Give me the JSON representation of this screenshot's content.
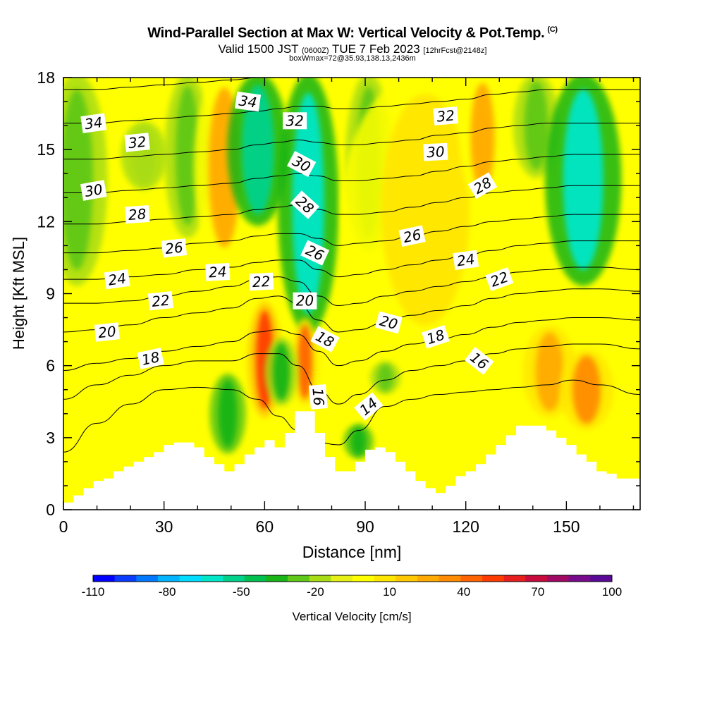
{
  "chart_data": {
    "type": "heatmap",
    "title": "Wind-Parallel Section at Max W: Vertical Velocity & Pot.Temp.",
    "title_mark": "(C)",
    "subtitle_prefix": "Valid 1500 JST",
    "subtitle_utc": "(0600Z)",
    "subtitle_date": "TUE 7 Feb 2023",
    "subtitle_fcst": "[12hrFcst@2148z]",
    "box_note": "boxWmax=72@35.93,138.13,2436m",
    "xlabel": "Distance [nm]",
    "ylabel": "Height [Kft MSL]",
    "xlim": [
      0,
      172
    ],
    "ylim": [
      0,
      18
    ],
    "x_ticks": [
      "0",
      "30",
      "60",
      "90",
      "120",
      "150"
    ],
    "y_ticks": [
      "0",
      "3",
      "6",
      "9",
      "12",
      "15",
      "18"
    ],
    "colorbar": {
      "label": "Vertical Velocity [cm/s]",
      "tick_labels": [
        "-110",
        "-80",
        "-50",
        "-20",
        "10",
        "40",
        "70",
        "100"
      ],
      "colors": [
        "#0000ff",
        "#0a3cff",
        "#0078ff",
        "#00b4ff",
        "#00dcff",
        "#00e6c8",
        "#00d28c",
        "#00c050",
        "#18b418",
        "#60c818",
        "#a8dc14",
        "#e6f014",
        "#ffff00",
        "#ffe600",
        "#ffc800",
        "#ffaa00",
        "#ff8c00",
        "#ff6400",
        "#ff3c00",
        "#e61e1e",
        "#c80a3c",
        "#a00a64",
        "#780a8c",
        "#5a0a96"
      ]
    },
    "velocity_bands": [
      {
        "x": 4,
        "w": 4,
        "b": 9.5,
        "t": 18,
        "v": -12
      },
      {
        "x": 24,
        "w": 3,
        "b": 13.5,
        "t": 16,
        "v": -5
      },
      {
        "x": 37,
        "w": 3,
        "b": 11.5,
        "t": 18,
        "v": -18
      },
      {
        "x": 48,
        "w": 4,
        "b": 10.5,
        "t": 18,
        "v": 42
      },
      {
        "x": 58,
        "w": 4,
        "b": 12,
        "t": 18,
        "v": -48
      },
      {
        "x": 73,
        "w": 4,
        "b": 7.5,
        "t": 18,
        "v": -55
      },
      {
        "x": 91,
        "w": 3,
        "b": 11,
        "t": 18,
        "v": -20
      },
      {
        "x": 108,
        "w": 11,
        "b": 7,
        "t": 18,
        "v": 28
      },
      {
        "x": 125,
        "w": 3,
        "b": 13,
        "t": 18,
        "v": 42
      },
      {
        "x": 141,
        "w": 3,
        "b": 14,
        "t": 18,
        "v": -18
      },
      {
        "x": 155,
        "w": 5,
        "b": 9.5,
        "t": 18,
        "v": -60
      },
      {
        "x": 60,
        "w": 2.2,
        "b": 4,
        "t": 8.5,
        "v": 72
      },
      {
        "x": 72,
        "w": 1.8,
        "b": 4.5,
        "t": 7.8,
        "v": 65
      },
      {
        "x": 49,
        "w": 2.4,
        "b": 2.5,
        "t": 5.5,
        "v": -25
      },
      {
        "x": 65,
        "w": 2.2,
        "b": 4.5,
        "t": 7,
        "v": -22
      },
      {
        "x": 96,
        "w": 2,
        "b": 5,
        "t": 6,
        "v": -20
      },
      {
        "x": 88,
        "w": 2,
        "b": 2.3,
        "t": 3.4,
        "v": -25
      },
      {
        "x": 145,
        "w": 3.5,
        "b": 4,
        "t": 7.5,
        "v": 45
      },
      {
        "x": 156,
        "w": 3.5,
        "b": 3.5,
        "t": 6.5,
        "v": 55
      }
    ],
    "terrain_x": [
      0,
      3,
      6,
      9,
      12,
      15,
      18,
      21,
      24,
      27,
      30,
      33,
      36,
      39,
      42,
      45,
      48,
      51,
      54,
      57,
      60,
      63,
      66,
      69,
      72,
      75,
      78,
      81,
      84,
      87,
      90,
      93,
      96,
      99,
      102,
      105,
      108,
      111,
      114,
      117,
      120,
      123,
      126,
      129,
      132,
      135,
      138,
      141,
      144,
      147,
      150,
      153,
      156,
      159,
      162,
      165,
      168,
      172
    ],
    "terrain_y": [
      0.3,
      0.6,
      0.9,
      1.2,
      1.3,
      1.6,
      1.8,
      2.0,
      2.2,
      2.4,
      2.7,
      2.8,
      2.8,
      2.6,
      2.2,
      1.9,
      1.6,
      1.9,
      2.3,
      2.6,
      2.9,
      2.6,
      3.2,
      4.1,
      4.1,
      3.2,
      2.2,
      1.6,
      1.6,
      2.0,
      2.5,
      2.6,
      2.4,
      2.0,
      1.6,
      1.2,
      0.9,
      0.7,
      1.0,
      1.4,
      1.6,
      1.9,
      2.3,
      2.7,
      3.1,
      3.5,
      3.5,
      3.5,
      3.3,
      3.0,
      2.7,
      2.3,
      2.0,
      1.6,
      1.5,
      1.3,
      1.3,
      1.3
    ],
    "contour_x": [
      0,
      10,
      20,
      30,
      40,
      50,
      58,
      64,
      70,
      76,
      82,
      88,
      96,
      104,
      112,
      120,
      128,
      136,
      144,
      152,
      160,
      172
    ],
    "contours": [
      {
        "theta": 14,
        "y": [
          2.4,
          3.6,
          4.4,
          5.0,
          5.1,
          5.0,
          4.6,
          3.9,
          3.3,
          2.8,
          2.7,
          3.3,
          4.3,
          4.6,
          4.8,
          4.9,
          5.0,
          5.1,
          5.2,
          5.4,
          5.2,
          4.8
        ]
      },
      {
        "theta": 16,
        "y": [
          4.6,
          5.2,
          5.6,
          6.0,
          6.2,
          6.2,
          6.5,
          6.5,
          6.0,
          5.0,
          4.4,
          4.8,
          5.4,
          5.8,
          6.0,
          6.2,
          6.5,
          6.7,
          6.8,
          6.9,
          6.9,
          6.7
        ]
      },
      {
        "theta": 18,
        "y": [
          5.8,
          6.1,
          6.3,
          6.6,
          6.8,
          7.0,
          7.4,
          7.5,
          7.3,
          6.6,
          6.0,
          6.2,
          6.6,
          6.9,
          7.1,
          7.3,
          7.6,
          7.8,
          7.9,
          8.0,
          8.0,
          7.9
        ]
      },
      {
        "theta": 20,
        "y": [
          7.4,
          7.5,
          7.7,
          8.0,
          8.2,
          8.4,
          8.8,
          8.9,
          8.6,
          7.9,
          7.4,
          7.5,
          7.8,
          8.1,
          8.3,
          8.5,
          8.8,
          9.0,
          9.1,
          9.2,
          9.2,
          9.1
        ]
      },
      {
        "theta": 22,
        "y": [
          8.6,
          8.6,
          8.7,
          8.9,
          9.1,
          9.3,
          9.6,
          9.7,
          9.5,
          8.9,
          8.5,
          8.6,
          8.9,
          9.1,
          9.3,
          9.5,
          9.7,
          9.9,
          10.0,
          10.1,
          10.1,
          10.0
        ]
      },
      {
        "theta": 24,
        "y": [
          9.6,
          9.6,
          9.7,
          9.8,
          10.0,
          10.1,
          10.3,
          10.4,
          10.4,
          10.0,
          9.7,
          9.8,
          10.0,
          10.2,
          10.4,
          10.6,
          10.8,
          11.0,
          11.1,
          11.2,
          11.2,
          11.2
        ]
      },
      {
        "theta": 26,
        "y": [
          10.7,
          10.7,
          10.8,
          10.9,
          11.1,
          11.2,
          11.4,
          11.5,
          11.5,
          11.3,
          11.0,
          11.1,
          11.2,
          11.4,
          11.6,
          11.8,
          12.0,
          12.1,
          12.2,
          12.3,
          12.3,
          12.3
        ]
      },
      {
        "theta": 28,
        "y": [
          11.9,
          11.9,
          12.0,
          12.1,
          12.2,
          12.3,
          12.5,
          12.6,
          12.7,
          12.5,
          12.3,
          12.3,
          12.4,
          12.6,
          12.8,
          13.0,
          13.2,
          13.3,
          13.4,
          13.5,
          13.5,
          13.5
        ]
      },
      {
        "theta": 30,
        "y": [
          13.2,
          13.2,
          13.3,
          13.4,
          13.5,
          13.6,
          13.8,
          13.9,
          14.0,
          13.9,
          13.7,
          13.7,
          13.8,
          13.9,
          14.1,
          14.3,
          14.5,
          14.6,
          14.7,
          14.8,
          14.8,
          14.8
        ]
      },
      {
        "theta": 32,
        "y": [
          14.6,
          14.6,
          14.7,
          14.8,
          14.9,
          15.0,
          15.2,
          15.3,
          15.4,
          15.3,
          15.2,
          15.2,
          15.3,
          15.4,
          15.6,
          15.7,
          15.9,
          16.0,
          16.1,
          16.1,
          16.1,
          16.1
        ]
      },
      {
        "theta": 34,
        "y": [
          16.1,
          16.1,
          16.2,
          16.3,
          16.4,
          16.5,
          16.6,
          16.7,
          16.8,
          16.8,
          16.7,
          16.7,
          16.8,
          16.9,
          17.0,
          17.1,
          17.3,
          17.4,
          17.5,
          17.5,
          17.5,
          17.5
        ]
      },
      {
        "theta": 36,
        "y": [
          17.5,
          17.5,
          17.6,
          17.7,
          17.8,
          17.9,
          18.0,
          18.1,
          18.2,
          18.2,
          18.1,
          18.1,
          18.2,
          18.3,
          18.4,
          18.5,
          18.6,
          18.7,
          18.8,
          18.8,
          18.8,
          18.8
        ]
      }
    ],
    "contour_labels": [
      {
        "text": "34",
        "x": 9,
        "y": 16.1,
        "rot": -8
      },
      {
        "text": "32",
        "x": 22,
        "y": 15.3,
        "rot": -6
      },
      {
        "text": "30",
        "x": 9,
        "y": 13.3,
        "rot": -10
      },
      {
        "text": "28",
        "x": 22,
        "y": 12.3,
        "rot": -4
      },
      {
        "text": "26",
        "x": 33,
        "y": 10.9,
        "rot": -6
      },
      {
        "text": "24",
        "x": 16,
        "y": 9.6,
        "rot": -8
      },
      {
        "text": "24",
        "x": 46,
        "y": 9.9,
        "rot": -3
      },
      {
        "text": "22",
        "x": 29,
        "y": 8.7,
        "rot": -6
      },
      {
        "text": "22",
        "x": 59,
        "y": 9.5,
        "rot": -3
      },
      {
        "text": "20",
        "x": 13,
        "y": 7.4,
        "rot": -6
      },
      {
        "text": "20",
        "x": 72,
        "y": 8.7,
        "rot": 0
      },
      {
        "text": "20",
        "x": 97,
        "y": 7.8,
        "rot": 15
      },
      {
        "text": "18",
        "x": 26,
        "y": 6.3,
        "rot": -12
      },
      {
        "text": "18",
        "x": 78,
        "y": 7.1,
        "rot": 28
      },
      {
        "text": "18",
        "x": 111,
        "y": 7.2,
        "rot": -18
      },
      {
        "text": "16",
        "x": 76,
        "y": 4.7,
        "rot": 85
      },
      {
        "text": "16",
        "x": 124,
        "y": 6.2,
        "rot": 38
      },
      {
        "text": "14",
        "x": 91,
        "y": 4.3,
        "rot": -40
      },
      {
        "text": "34",
        "x": 55,
        "y": 17.0,
        "rot": 8
      },
      {
        "text": "32",
        "x": 69,
        "y": 16.2,
        "rot": 0
      },
      {
        "text": "30",
        "x": 71,
        "y": 14.4,
        "rot": 28
      },
      {
        "text": "28",
        "x": 72,
        "y": 12.7,
        "rot": 42
      },
      {
        "text": "26",
        "x": 75,
        "y": 10.7,
        "rot": 25
      },
      {
        "text": "32",
        "x": 114,
        "y": 16.4,
        "rot": -5
      },
      {
        "text": "30",
        "x": 111,
        "y": 14.9,
        "rot": -3
      },
      {
        "text": "28",
        "x": 125,
        "y": 13.5,
        "rot": -30
      },
      {
        "text": "26",
        "x": 104,
        "y": 11.4,
        "rot": -12
      },
      {
        "text": "24",
        "x": 120,
        "y": 10.4,
        "rot": -8
      },
      {
        "text": "22",
        "x": 130,
        "y": 9.6,
        "rot": -20
      }
    ]
  }
}
